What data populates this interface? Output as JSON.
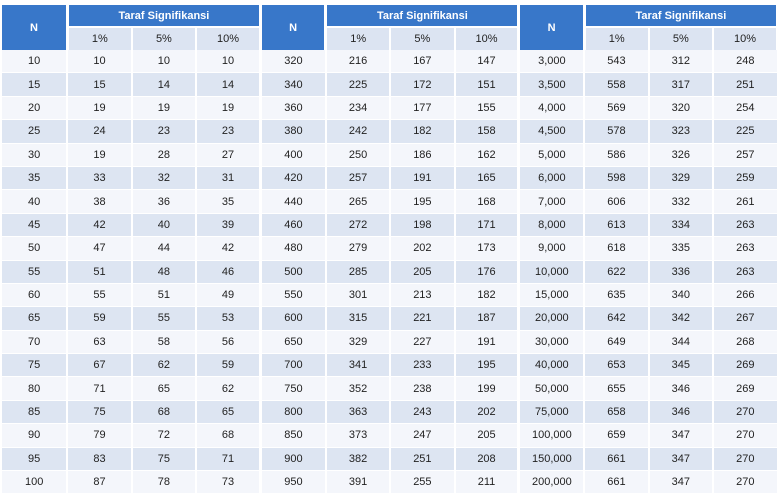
{
  "table": {
    "header": {
      "n_label": "N",
      "group_label": "Taraf Signifikansi",
      "levels": [
        "1%",
        "5%",
        "10%"
      ]
    },
    "groups": [
      {
        "rows": [
          [
            "10",
            "10",
            "10",
            "10"
          ],
          [
            "15",
            "15",
            "14",
            "14"
          ],
          [
            "20",
            "19",
            "19",
            "19"
          ],
          [
            "25",
            "24",
            "23",
            "23"
          ],
          [
            "30",
            "19",
            "28",
            "27"
          ],
          [
            "35",
            "33",
            "32",
            "31"
          ],
          [
            "40",
            "38",
            "36",
            "35"
          ],
          [
            "45",
            "42",
            "40",
            "39"
          ],
          [
            "50",
            "47",
            "44",
            "42"
          ],
          [
            "55",
            "51",
            "48",
            "46"
          ],
          [
            "60",
            "55",
            "51",
            "49"
          ],
          [
            "65",
            "59",
            "55",
            "53"
          ],
          [
            "70",
            "63",
            "58",
            "56"
          ],
          [
            "75",
            "67",
            "62",
            "59"
          ],
          [
            "80",
            "71",
            "65",
            "62"
          ],
          [
            "85",
            "75",
            "68",
            "65"
          ],
          [
            "90",
            "79",
            "72",
            "68"
          ],
          [
            "95",
            "83",
            "75",
            "71"
          ],
          [
            "100",
            "87",
            "78",
            "73"
          ]
        ]
      },
      {
        "rows": [
          [
            "320",
            "216",
            "167",
            "147"
          ],
          [
            "340",
            "225",
            "172",
            "151"
          ],
          [
            "360",
            "234",
            "177",
            "155"
          ],
          [
            "380",
            "242",
            "182",
            "158"
          ],
          [
            "400",
            "250",
            "186",
            "162"
          ],
          [
            "420",
            "257",
            "191",
            "165"
          ],
          [
            "440",
            "265",
            "195",
            "168"
          ],
          [
            "460",
            "272",
            "198",
            "171"
          ],
          [
            "480",
            "279",
            "202",
            "173"
          ],
          [
            "500",
            "285",
            "205",
            "176"
          ],
          [
            "550",
            "301",
            "213",
            "182"
          ],
          [
            "600",
            "315",
            "221",
            "187"
          ],
          [
            "650",
            "329",
            "227",
            "191"
          ],
          [
            "700",
            "341",
            "233",
            "195"
          ],
          [
            "750",
            "352",
            "238",
            "199"
          ],
          [
            "800",
            "363",
            "243",
            "202"
          ],
          [
            "850",
            "373",
            "247",
            "205"
          ],
          [
            "900",
            "382",
            "251",
            "208"
          ],
          [
            "950",
            "391",
            "255",
            "211"
          ]
        ]
      },
      {
        "rows": [
          [
            "3,000",
            "543",
            "312",
            "248"
          ],
          [
            "3,500",
            "558",
            "317",
            "251"
          ],
          [
            "4,000",
            "569",
            "320",
            "254"
          ],
          [
            "4,500",
            "578",
            "323",
            "225"
          ],
          [
            "5,000",
            "586",
            "326",
            "257"
          ],
          [
            "6,000",
            "598",
            "329",
            "259"
          ],
          [
            "7,000",
            "606",
            "332",
            "261"
          ],
          [
            "8,000",
            "613",
            "334",
            "263"
          ],
          [
            "9,000",
            "618",
            "335",
            "263"
          ],
          [
            "10,000",
            "622",
            "336",
            "263"
          ],
          [
            "15,000",
            "635",
            "340",
            "266"
          ],
          [
            "20,000",
            "642",
            "342",
            "267"
          ],
          [
            "30,000",
            "649",
            "344",
            "268"
          ],
          [
            "40,000",
            "653",
            "345",
            "269"
          ],
          [
            "50,000",
            "655",
            "346",
            "269"
          ],
          [
            "75,000",
            "658",
            "346",
            "270"
          ],
          [
            "100,000",
            "659",
            "347",
            "270"
          ],
          [
            "150,000",
            "661",
            "347",
            "270"
          ],
          [
            "200,000",
            "661",
            "347",
            "270"
          ]
        ]
      }
    ]
  }
}
